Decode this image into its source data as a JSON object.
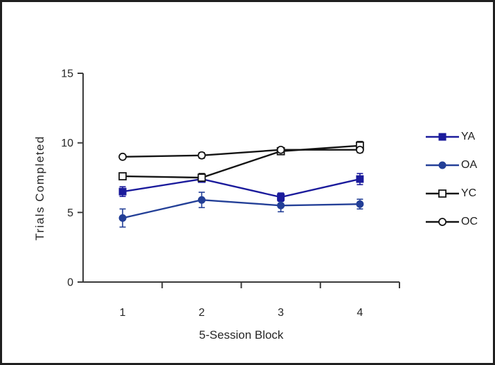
{
  "figure": {
    "background": "#ffffff",
    "border_color": "#1f1f1f"
  },
  "chart_data": {
    "type": "line",
    "title": "",
    "xlabel": "5-Session Block",
    "ylabel": "Trials Completed",
    "categories": [
      "1",
      "2",
      "3",
      "4"
    ],
    "ylim": [
      0,
      15
    ],
    "yticks": [
      0,
      5,
      10,
      15
    ],
    "grid": false,
    "legend_position": "right-middle",
    "axis_color": "#3a3a3a",
    "text_color": "#262626",
    "series": [
      {
        "name": "YA",
        "marker": "square-filled",
        "color": "#1b1b9c",
        "values": [
          6.5,
          7.4,
          6.1,
          7.4
        ],
        "errors": [
          0.35,
          0.2,
          0.3,
          0.4
        ]
      },
      {
        "name": "OA",
        "marker": "circle-filled",
        "color": "#233f97",
        "values": [
          4.6,
          5.9,
          5.5,
          5.6
        ],
        "errors": [
          0.65,
          0.55,
          0.45,
          0.35
        ]
      },
      {
        "name": "YC",
        "marker": "square-open",
        "color": "#141414",
        "values": [
          7.6,
          7.5,
          9.4,
          9.8
        ],
        "errors": [
          0.2,
          0.3,
          0.2,
          0.3
        ]
      },
      {
        "name": "OC",
        "marker": "circle-open",
        "color": "#141414",
        "values": [
          9.0,
          9.1,
          9.5,
          9.5
        ],
        "errors": [
          0.15,
          0.2,
          0.15,
          0.2
        ]
      }
    ]
  }
}
